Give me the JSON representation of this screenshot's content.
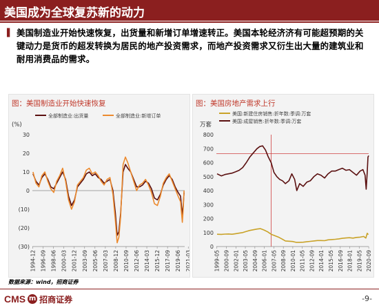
{
  "slide": {
    "title": "美国成为全球复苏新的动力",
    "body": "美国制造业开始快速恢复，出货量和新增订单增速转正。美国本轮经济济有可能超预期的关键动力是货币的超发转换为居民的地产投资需求，而地产投资需求又衍生出大量的建筑业和耐用消费品的需求。",
    "source": "数据来源：wind，招商证券",
    "page_number": "-9-",
    "logo": {
      "latin": "CMS",
      "mark": "m",
      "chinese": "招商证券"
    }
  },
  "colors": {
    "brand": "#8b1f1f",
    "series_dark": "#5a0f0f",
    "series_orange": "#ec8a2e",
    "series_gold": "#c9a227",
    "refline": "#d04040"
  },
  "chart_data": [
    {
      "type": "line",
      "title": "图：美国制造业开始快速恢复",
      "ylabel": "(%)",
      "ylim": [
        -30,
        30
      ],
      "yticks": [
        30,
        20,
        10,
        0,
        -10,
        -20,
        -30
      ],
      "ytick_labels": [
        "30",
        "20",
        "10",
        "0",
        "(10)",
        "(20)",
        "(30)"
      ],
      "xlim": [
        1994.9,
        2020.6
      ],
      "xticks": [
        "1994-12",
        "1996-09",
        "1998-06",
        "2000-03",
        "2001-12",
        "2003-09",
        "2005-06",
        "2007-03",
        "2008-12",
        "2010-09",
        "2012-06",
        "2014-03",
        "2015-12",
        "2017-09",
        "2019-06",
        "2021-03"
      ],
      "xtick_positions": [
        1994.96,
        1996.71,
        1998.46,
        2000.21,
        2001.96,
        2003.71,
        2005.46,
        2007.21,
        2008.96,
        2010.71,
        2012.46,
        2014.21,
        2015.96,
        2017.71,
        2019.46,
        2021.21
      ],
      "legend_position": "top",
      "series": [
        {
          "name": "全部制造业:出货量",
          "color": "#5a0f0f",
          "x": [
            1995.0,
            1995.5,
            1996.0,
            1996.5,
            1997.0,
            1997.5,
            1998.0,
            1998.5,
            1999.0,
            1999.5,
            2000.0,
            2000.5,
            2001.0,
            2001.5,
            2002.0,
            2002.5,
            2003.0,
            2003.5,
            2004.0,
            2004.5,
            2005.0,
            2005.5,
            2006.0,
            2006.5,
            2007.0,
            2007.5,
            2008.0,
            2008.5,
            2008.9,
            2009.2,
            2009.5,
            2009.8,
            2010.2,
            2010.6,
            2011.0,
            2011.5,
            2012.0,
            2012.5,
            2013.0,
            2013.5,
            2014.0,
            2014.5,
            2015.0,
            2015.5,
            2016.0,
            2016.5,
            2017.0,
            2017.5,
            2018.0,
            2018.5,
            2019.0,
            2019.5,
            2019.9,
            2020.2,
            2020.35,
            2020.5
          ],
          "values": [
            9,
            5,
            3,
            7,
            9,
            6,
            2,
            1,
            4,
            7,
            10,
            6,
            -3,
            -8,
            -5,
            2,
            4,
            6,
            9,
            10,
            8,
            9,
            7,
            6,
            4,
            5,
            6,
            0,
            -12,
            -24,
            -22,
            -12,
            10,
            14,
            12,
            10,
            6,
            2,
            2,
            3,
            5,
            4,
            1,
            -4,
            -5,
            -2,
            3,
            6,
            8,
            6,
            2,
            -1,
            -3,
            -13,
            -8,
            -1
          ]
        },
        {
          "name": "全部制造业:新增订单",
          "color": "#ec8a2e",
          "x": [
            1995.0,
            1995.5,
            1996.0,
            1996.5,
            1997.0,
            1997.5,
            1998.0,
            1998.5,
            1999.0,
            1999.5,
            2000.0,
            2000.5,
            2001.0,
            2001.5,
            2002.0,
            2002.5,
            2003.0,
            2003.5,
            2004.0,
            2004.5,
            2005.0,
            2005.5,
            2006.0,
            2006.5,
            2007.0,
            2007.5,
            2008.0,
            2008.5,
            2008.9,
            2009.2,
            2009.5,
            2009.8,
            2010.2,
            2010.6,
            2011.0,
            2011.5,
            2012.0,
            2012.5,
            2013.0,
            2013.5,
            2014.0,
            2014.5,
            2015.0,
            2015.5,
            2016.0,
            2016.5,
            2017.0,
            2017.5,
            2018.0,
            2018.5,
            2019.0,
            2019.5,
            2019.9,
            2020.2,
            2020.35,
            2020.5
          ],
          "values": [
            10,
            4,
            2,
            8,
            10,
            5,
            1,
            -1,
            5,
            8,
            12,
            5,
            -5,
            -10,
            -6,
            3,
            5,
            7,
            11,
            12,
            9,
            10,
            8,
            5,
            3,
            6,
            7,
            -2,
            -16,
            -28,
            -25,
            -14,
            14,
            18,
            15,
            10,
            5,
            0,
            3,
            4,
            6,
            3,
            -1,
            -7,
            -8,
            -3,
            4,
            7,
            9,
            5,
            1,
            -3,
            -6,
            -17,
            -10,
            0
          ]
        }
      ]
    },
    {
      "type": "line",
      "title": "图：美国房地产需求上行",
      "ylabel": "万套",
      "ylim": [
        0,
        800
      ],
      "yticks": [
        800,
        700,
        600,
        500,
        400,
        300,
        200,
        100,
        0
      ],
      "xlim": [
        1999.3,
        2020.7
      ],
      "xticks": [
        "1999-05",
        "2000-09",
        "2002-01",
        "2003-05",
        "2004-09",
        "2006-01",
        "2007-05",
        "2008-09",
        "2010-01",
        "2011-05",
        "2012-09",
        "2014-01",
        "2015-05",
        "2016-09",
        "2018-01",
        "2019-05",
        "2020-09"
      ],
      "xtick_positions": [
        1999.37,
        2000.71,
        2002.04,
        2003.37,
        2004.71,
        2006.04,
        2007.37,
        2008.71,
        2010.04,
        2011.37,
        2012.71,
        2014.04,
        2015.37,
        2016.71,
        2018.04,
        2019.37,
        2020.71
      ],
      "legend_position": "top",
      "annotations": {
        "hline_value": 665,
        "vline_x": 2007.0
      },
      "series": [
        {
          "name": "美国:新建住房销售:折年数:季调:万套",
          "color": "#c9a227",
          "x": [
            1999.4,
            2000.0,
            2000.5,
            2001.0,
            2001.5,
            2002.0,
            2002.5,
            2003.0,
            2003.5,
            2004.0,
            2004.5,
            2005.0,
            2005.5,
            2006.0,
            2006.5,
            2007.0,
            2007.5,
            2008.0,
            2008.5,
            2009.0,
            2009.5,
            2010.0,
            2010.5,
            2011.0,
            2011.5,
            2012.0,
            2012.5,
            2013.0,
            2013.5,
            2014.0,
            2014.5,
            2015.0,
            2015.5,
            2016.0,
            2016.5,
            2017.0,
            2017.5,
            2018.0,
            2018.5,
            2019.0,
            2019.5,
            2020.0,
            2020.3,
            2020.5,
            2020.65
          ],
          "values": [
            88,
            87,
            89,
            90,
            88,
            92,
            96,
            100,
            108,
            115,
            120,
            125,
            128,
            118,
            105,
            88,
            78,
            68,
            55,
            40,
            38,
            36,
            30,
            30,
            31,
            34,
            37,
            40,
            43,
            43,
            42,
            48,
            50,
            52,
            55,
            59,
            61,
            63,
            60,
            65,
            67,
            72,
            60,
            95,
            85
          ]
        },
        {
          "name": "美国:成屋销售:折年数:季调:万套",
          "color": "#5a0f0f",
          "x": [
            1999.4,
            2000.0,
            2000.5,
            2001.0,
            2001.5,
            2002.0,
            2002.5,
            2003.0,
            2003.5,
            2004.0,
            2004.5,
            2005.0,
            2005.4,
            2005.8,
            2006.2,
            2006.6,
            2007.0,
            2007.4,
            2007.8,
            2008.2,
            2008.6,
            2009.0,
            2009.5,
            2009.9,
            2010.3,
            2010.6,
            2011.0,
            2011.5,
            2012.0,
            2012.5,
            2013.0,
            2013.5,
            2014.0,
            2014.5,
            2015.0,
            2015.5,
            2016.0,
            2016.5,
            2017.0,
            2017.5,
            2018.0,
            2018.5,
            2019.0,
            2019.5,
            2019.9,
            2020.2,
            2020.35,
            2020.5,
            2020.6,
            2020.7
          ],
          "values": [
            520,
            505,
            515,
            520,
            525,
            535,
            545,
            565,
            600,
            640,
            670,
            700,
            715,
            720,
            690,
            640,
            600,
            530,
            500,
            480,
            470,
            450,
            470,
            520,
            480,
            400,
            450,
            430,
            460,
            470,
            500,
            520,
            510,
            490,
            520,
            540,
            540,
            550,
            560,
            545,
            550,
            530,
            510,
            540,
            550,
            510,
            410,
            530,
            640,
            650
          ]
        }
      ]
    }
  ]
}
